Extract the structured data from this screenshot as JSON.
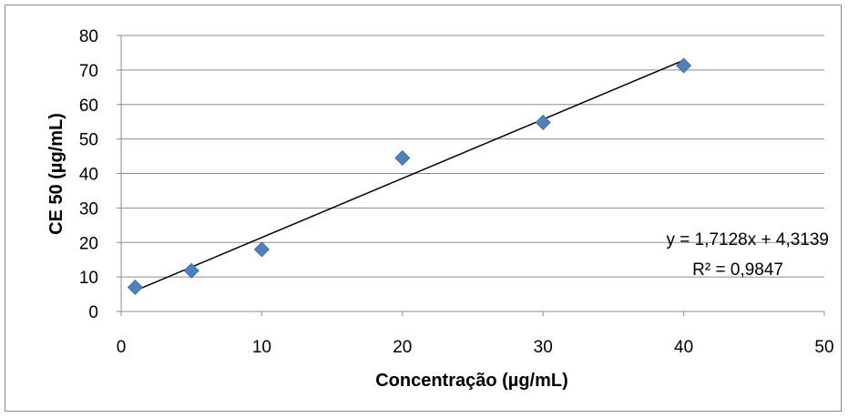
{
  "chart_data": {
    "type": "scatter",
    "xlabel": "Concentração (µg/mL)",
    "ylabel": "CE 50 (µg/mL)",
    "xlim": [
      0,
      50
    ],
    "ylim": [
      0,
      80
    ],
    "x_ticks": [
      "0",
      "10",
      "20",
      "30",
      "40",
      "50"
    ],
    "y_ticks": [
      "0",
      "10",
      "20",
      "30",
      "40",
      "50",
      "60",
      "70",
      "80"
    ],
    "grid": "horizontal",
    "legend": "none",
    "marker_color": "#4F81BD",
    "series": [
      {
        "marker": "diamond",
        "x": [
          1,
          5,
          10,
          20,
          30,
          40
        ],
        "y": [
          7,
          11.8,
          18,
          44.5,
          54.8,
          71.3
        ]
      }
    ],
    "trendline": {
      "type": "linear",
      "slope": 1.7128,
      "intercept": 4.3139,
      "x_range": [
        1,
        40
      ],
      "equation": "y = 1,7128x + 4,3139",
      "r_squared": "R² = 0,9847"
    }
  }
}
